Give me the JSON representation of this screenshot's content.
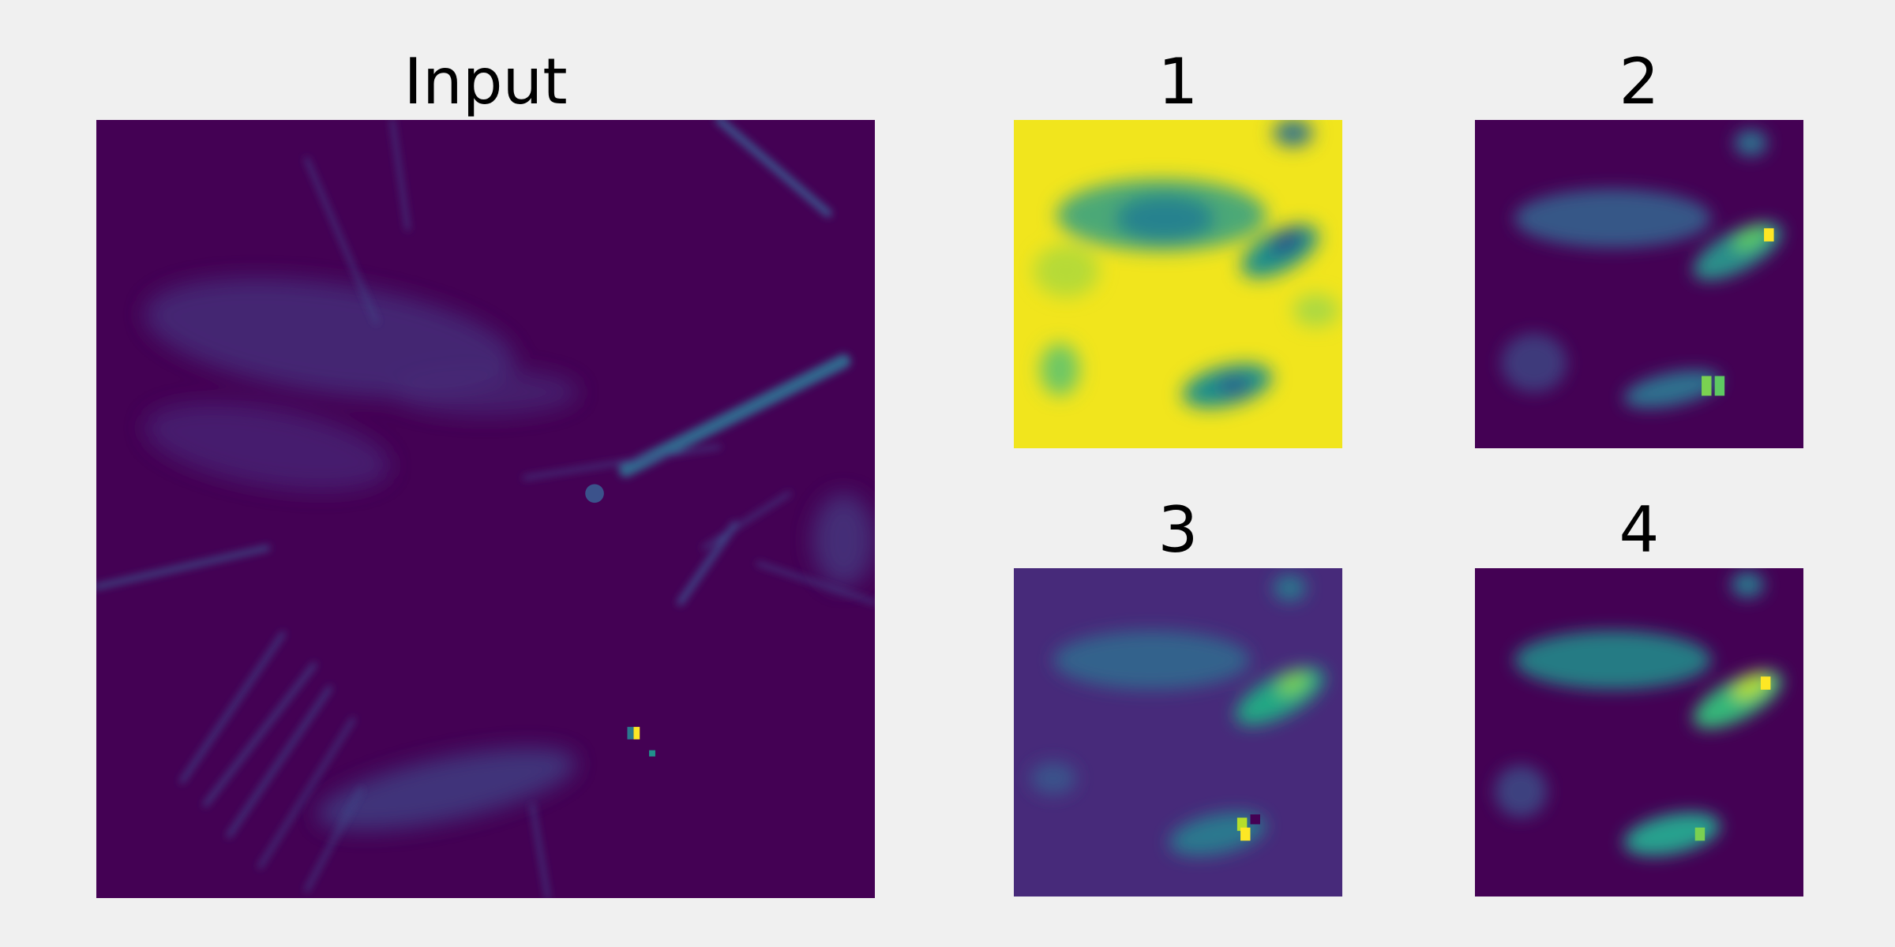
{
  "figure": {
    "colormap": "viridis",
    "background": "#f0f0f0",
    "colors": {
      "low": "#440154",
      "mid": "#21918c",
      "high": "#fde725"
    }
  },
  "panels": [
    {
      "id": "input",
      "title": "Input",
      "kind": "input-image"
    },
    {
      "id": "p1",
      "title": "1",
      "kind": "inverted-feature-map"
    },
    {
      "id": "p2",
      "title": "2",
      "kind": "feature-map"
    },
    {
      "id": "p3",
      "title": "3",
      "kind": "feature-map"
    },
    {
      "id": "p4",
      "title": "4",
      "kind": "feature-map"
    }
  ]
}
